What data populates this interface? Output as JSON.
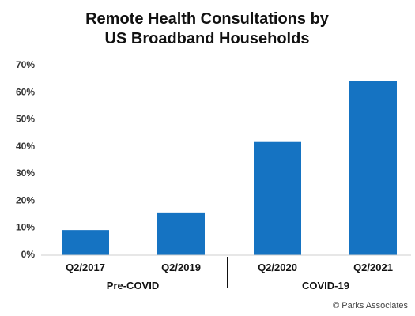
{
  "chart_data": {
    "type": "bar",
    "title_lines": [
      "Remote Health Consultations by",
      "US Broadband Households"
    ],
    "categories": [
      "Q2/2017",
      "Q2/2019",
      "Q2/2020",
      "Q2/2021"
    ],
    "values": [
      9,
      15.5,
      41.5,
      64
    ],
    "ylim": [
      0,
      70
    ],
    "yticks": [
      "0%",
      "10%",
      "20%",
      "30%",
      "40%",
      "50%",
      "60%",
      "70%"
    ],
    "groups": [
      {
        "label": "Pre-COVID",
        "categories": [
          "Q2/2017",
          "Q2/2019"
        ]
      },
      {
        "label": "COVID-19",
        "categories": [
          "Q2/2020",
          "Q2/2021"
        ]
      }
    ],
    "bar_color": "#1573c2",
    "grid": false,
    "credit": "© Parks Associates"
  }
}
